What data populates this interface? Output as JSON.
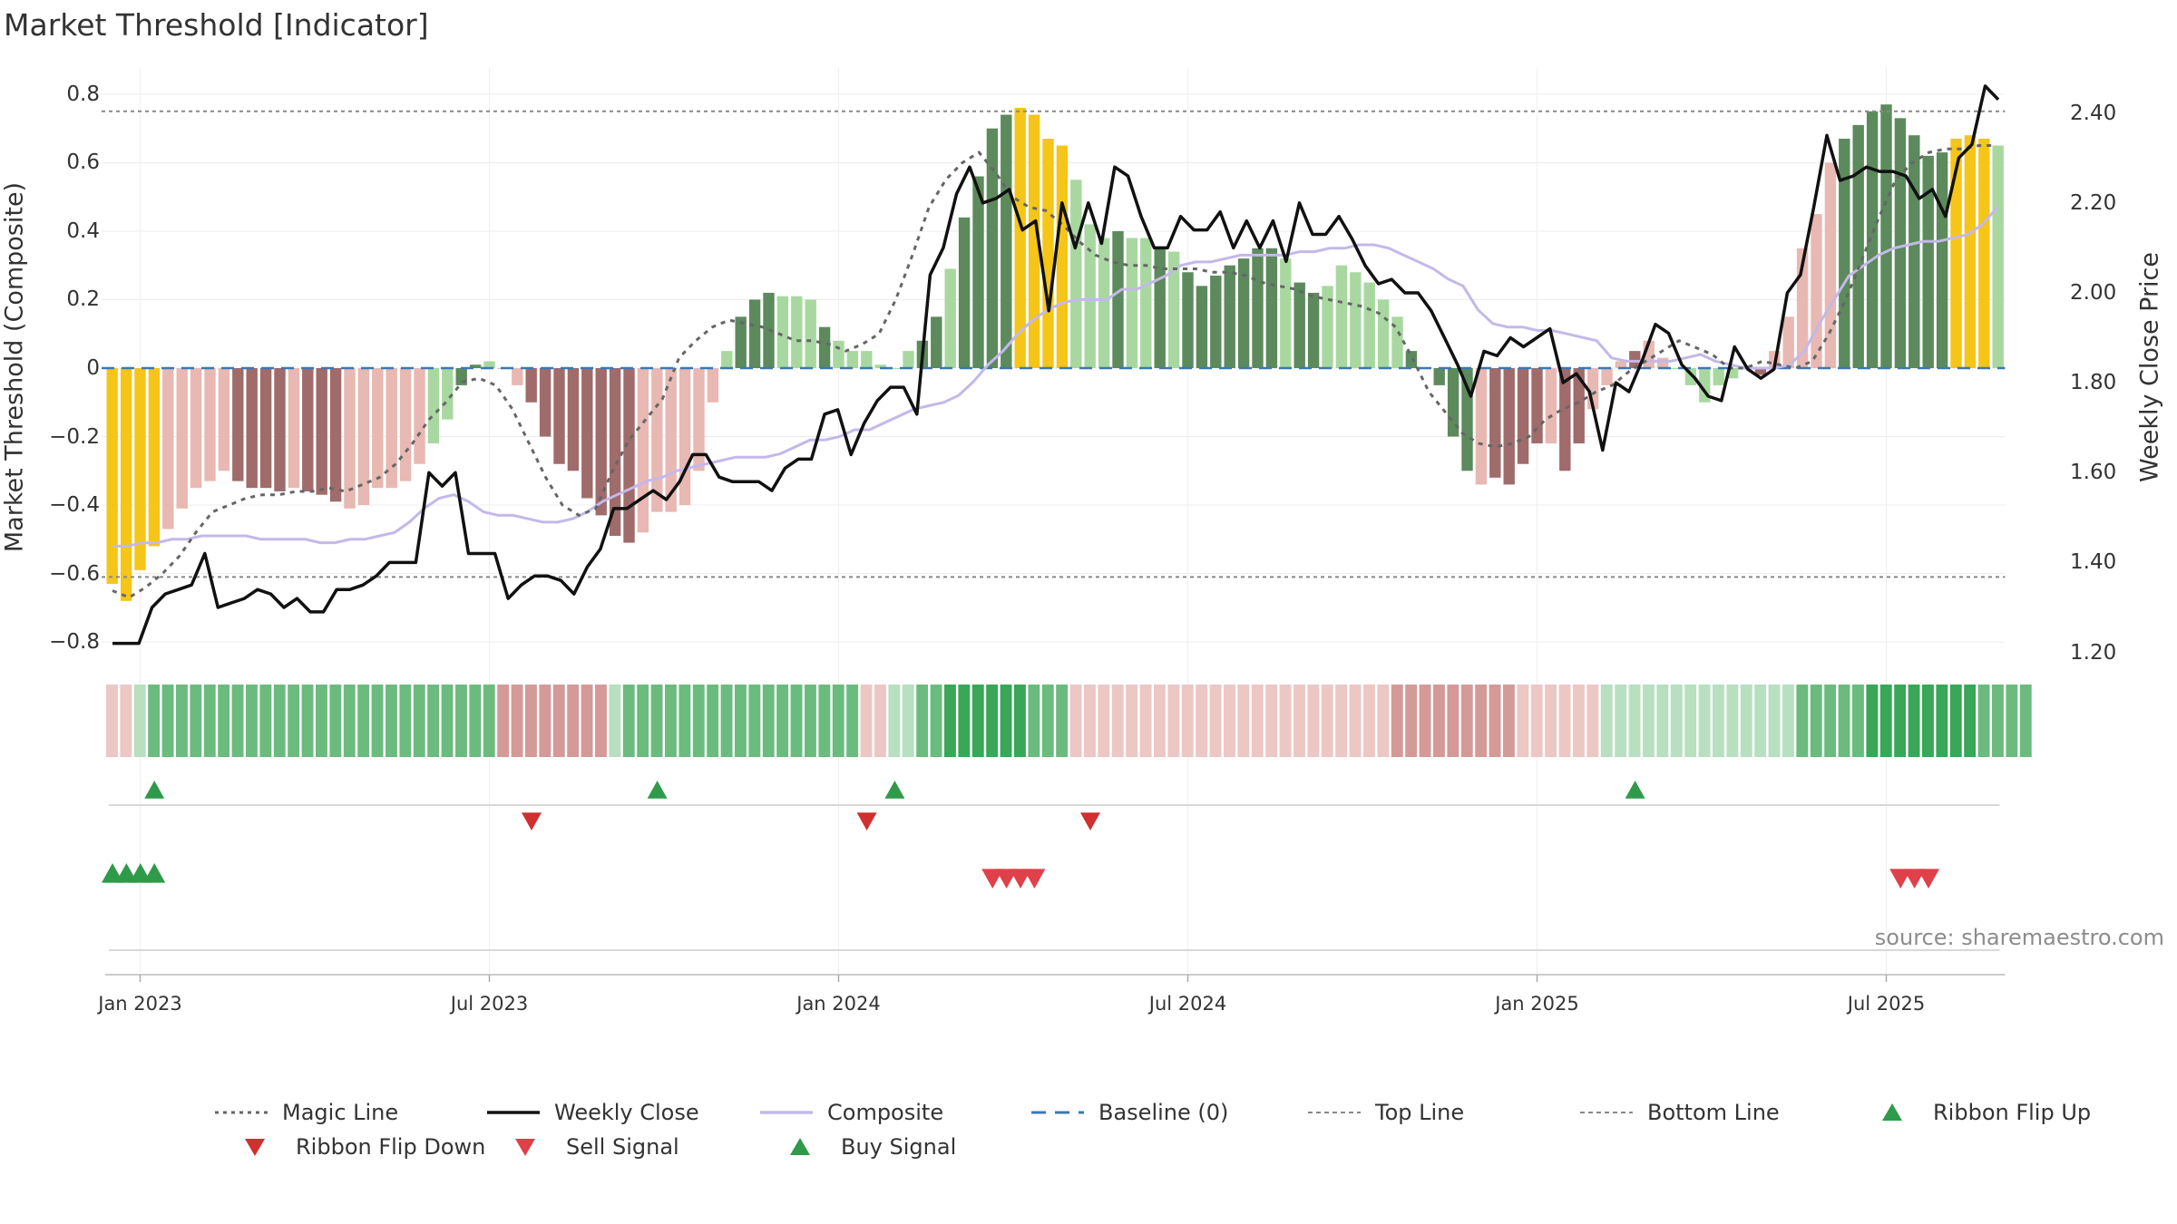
{
  "title": "Market Threshold [Indicator]",
  "source_note": "source: sharemaestro.com",
  "colors": {
    "yellow": "#f5c518",
    "dark_green": "#5c8a5c",
    "light_green": "#a8d8a0",
    "dark_red": "#a06b6b",
    "light_red": "#e8b8b2",
    "magic": "#666666",
    "close": "#111111",
    "composite": "#c4b8ea",
    "baseline": "#3a78b5",
    "threshold": "#888888",
    "buy": "#2e9a4a",
    "sell": "#e0404a",
    "flip_down": "#d03030"
  },
  "chart_data": {
    "type": "bar",
    "title": "Market Threshold [Indicator]",
    "ylabel": "Market Threshold (Composite)",
    "y2label": "Weekly Close Price",
    "ylim": [
      -0.85,
      0.85
    ],
    "y2lim": [
      1.185,
      2.48
    ],
    "yticks": [
      "0.8",
      "0.6",
      "0.4",
      "0.2",
      "0",
      "−0.2",
      "−0.4",
      "−0.6",
      "−0.8"
    ],
    "yticks_values": [
      0.8,
      0.6,
      0.4,
      0.2,
      0,
      -0.2,
      -0.4,
      -0.6,
      -0.8
    ],
    "y2ticks": [
      "2.40",
      "2.20",
      "2.00",
      "1.80",
      "1.60",
      "1.40",
      "1.20"
    ],
    "y2ticks_values": [
      2.4,
      2.2,
      2.0,
      1.8,
      1.6,
      1.4,
      1.2
    ],
    "xticks": [
      "Jan 2023",
      "Jul 2023",
      "Jan 2024",
      "Jul 2024",
      "Jan 2025",
      "Jul 2025"
    ],
    "xticks_week": [
      2.5,
      27.5,
      52.5,
      77.5,
      102.5,
      127.5
    ],
    "top_line": 0.75,
    "bottom_line": -0.61,
    "baseline": 0,
    "composite": [
      -0.63,
      -0.68,
      -0.59,
      -0.52,
      -0.47,
      -0.41,
      -0.35,
      -0.33,
      -0.3,
      -0.33,
      -0.35,
      -0.35,
      -0.36,
      -0.35,
      -0.36,
      -0.37,
      -0.39,
      -0.41,
      -0.4,
      -0.35,
      -0.35,
      -0.33,
      -0.28,
      -0.22,
      -0.15,
      -0.05,
      0.01,
      0.02,
      0.0,
      -0.05,
      -0.1,
      -0.2,
      -0.28,
      -0.3,
      -0.38,
      -0.43,
      -0.49,
      -0.51,
      -0.48,
      -0.42,
      -0.42,
      -0.4,
      -0.3,
      -0.1,
      0.05,
      0.15,
      0.2,
      0.22,
      0.21,
      0.21,
      0.2,
      0.12,
      0.08,
      0.05,
      0.05,
      0.01,
      0.0,
      0.05,
      0.08,
      0.15,
      0.29,
      0.44,
      0.56,
      0.7,
      0.74,
      0.76,
      0.74,
      0.67,
      0.65,
      0.55,
      0.42,
      0.38,
      0.4,
      0.38,
      0.38,
      0.35,
      0.34,
      0.28,
      0.24,
      0.27,
      0.3,
      0.32,
      0.35,
      0.35,
      0.32,
      0.25,
      0.22,
      0.24,
      0.3,
      0.28,
      0.25,
      0.2,
      0.15,
      0.05,
      0.0,
      -0.05,
      -0.2,
      -0.3,
      -0.34,
      -0.32,
      -0.34,
      -0.28,
      -0.22,
      -0.22,
      -0.3,
      -0.22,
      -0.12,
      -0.05,
      0.02,
      0.05,
      0.08,
      0.03,
      0.0,
      -0.05,
      -0.1,
      -0.05,
      -0.03,
      0.0,
      -0.02,
      0.05,
      0.15,
      0.35,
      0.45,
      0.6,
      0.67,
      0.71,
      0.75,
      0.77,
      0.73,
      0.68,
      0.62,
      0.63,
      0.67,
      0.68,
      0.67,
      0.65
    ],
    "bar_colors": [
      "Y",
      "Y",
      "Y",
      "Y",
      "LR",
      "LR",
      "LR",
      "LR",
      "LR",
      "DR",
      "DR",
      "DR",
      "DR",
      "LR",
      "DR",
      "DR",
      "DR",
      "LR",
      "LR",
      "LR",
      "LR",
      "LR",
      "LR",
      "LG",
      "LG",
      "DG",
      "DG",
      "LG",
      "LR",
      "LR",
      "DR",
      "DR",
      "DR",
      "DR",
      "DR",
      "DR",
      "DR",
      "DR",
      "LR",
      "LR",
      "LR",
      "LR",
      "LR",
      "LR",
      "LG",
      "DG",
      "DG",
      "DG",
      "LG",
      "LG",
      "LG",
      "DG",
      "LG",
      "LG",
      "LG",
      "LG",
      "LG",
      "LG",
      "DG",
      "DG",
      "LG",
      "DG",
      "DG",
      "DG",
      "DG",
      "Y",
      "Y",
      "Y",
      "Y",
      "LG",
      "LG",
      "LG",
      "DG",
      "LG",
      "LG",
      "DG",
      "LG",
      "DG",
      "DG",
      "DG",
      "DG",
      "DG",
      "DG",
      "DG",
      "LG",
      "DG",
      "DG",
      "LG",
      "LG",
      "LG",
      "LG",
      "LG",
      "LG",
      "DG",
      "LG",
      "DG",
      "DG",
      "DG",
      "LR",
      "DR",
      "DR",
      "DR",
      "DR",
      "LR",
      "DR",
      "DR",
      "LR",
      "LR",
      "LR",
      "DR",
      "LR",
      "LR",
      "LG",
      "LG",
      "LG",
      "LG",
      "LG",
      "DR",
      "DR",
      "LR",
      "LR",
      "LR",
      "LR",
      "LR",
      "DG",
      "DG",
      "DG",
      "DG",
      "DG",
      "DG",
      "DG",
      "DG",
      "Y",
      "Y",
      "Y",
      "LG",
      "LG",
      "LG",
      "DG",
      "DG",
      "DG",
      "LG"
    ],
    "magic_line": [
      -0.65,
      -0.67,
      -0.64,
      -0.6,
      -0.55,
      -0.48,
      -0.42,
      -0.4,
      -0.38,
      -0.37,
      -0.37,
      -0.36,
      -0.36,
      -0.35,
      -0.36,
      -0.34,
      -0.32,
      -0.28,
      -0.22,
      -0.15,
      -0.1,
      -0.04,
      -0.03,
      -0.05,
      -0.12,
      -0.22,
      -0.32,
      -0.4,
      -0.43,
      -0.41,
      -0.3,
      -0.21,
      -0.15,
      -0.09,
      0.03,
      0.08,
      0.12,
      0.14,
      0.13,
      0.12,
      0.1,
      0.08,
      0.08,
      0.07,
      0.05,
      0.07,
      0.1,
      0.2,
      0.33,
      0.47,
      0.55,
      0.6,
      0.63,
      0.57,
      0.5,
      0.47,
      0.46,
      0.42,
      0.37,
      0.33,
      0.31,
      0.3,
      0.3,
      0.29,
      0.29,
      0.29,
      0.28,
      0.28,
      0.27,
      0.25,
      0.24,
      0.23,
      0.21,
      0.2,
      0.19,
      0.18,
      0.16,
      0.12,
      0.03,
      -0.07,
      -0.13,
      -0.19,
      -0.22,
      -0.23,
      -0.22,
      -0.2,
      -0.15,
      -0.12,
      -0.1,
      -0.07,
      -0.05,
      -0.01,
      0.02,
      0.05,
      0.08,
      0.06,
      0.04,
      0.0,
      0.0,
      0.02,
      0.01,
      0.0,
      0.02,
      0.1,
      0.2,
      0.32,
      0.44,
      0.55,
      0.6,
      0.63,
      0.64,
      0.64,
      0.65,
      0.65
    ],
    "magic_line_start_week": 0,
    "composite_line": [
      -0.52,
      -0.52,
      -0.51,
      -0.51,
      -0.5,
      -0.5,
      -0.49,
      -0.49,
      -0.49,
      -0.49,
      -0.5,
      -0.5,
      -0.5,
      -0.5,
      -0.51,
      -0.51,
      -0.5,
      -0.5,
      -0.49,
      -0.48,
      -0.45,
      -0.41,
      -0.38,
      -0.37,
      -0.39,
      -0.42,
      -0.43,
      -0.43,
      -0.44,
      -0.45,
      -0.45,
      -0.44,
      -0.42,
      -0.39,
      -0.37,
      -0.35,
      -0.33,
      -0.32,
      -0.3,
      -0.29,
      -0.28,
      -0.27,
      -0.26,
      -0.26,
      -0.26,
      -0.25,
      -0.23,
      -0.21,
      -0.21,
      -0.2,
      -0.18,
      -0.18,
      -0.16,
      -0.14,
      -0.12,
      -0.11,
      -0.1,
      -0.08,
      -0.04,
      0.01,
      0.05,
      0.1,
      0.14,
      0.17,
      0.19,
      0.2,
      0.2,
      0.2,
      0.23,
      0.23,
      0.25,
      0.27,
      0.3,
      0.31,
      0.31,
      0.32,
      0.33,
      0.33,
      0.33,
      0.33,
      0.34,
      0.34,
      0.35,
      0.35,
      0.36,
      0.36,
      0.35,
      0.33,
      0.31,
      0.29,
      0.26,
      0.24,
      0.17,
      0.13,
      0.12,
      0.12,
      0.11,
      0.11,
      0.1,
      0.09,
      0.08,
      0.03,
      0.02,
      0.02,
      0.02,
      0.02,
      0.03,
      0.04,
      0.02,
      0.01,
      0.0,
      0.0,
      0.0,
      0.01,
      0.05,
      0.13,
      0.2,
      0.27,
      0.3,
      0.33,
      0.35,
      0.36,
      0.37,
      0.37,
      0.38,
      0.39,
      0.42,
      0.47
    ],
    "weekly_close": [
      1.22,
      1.22,
      1.22,
      1.3,
      1.33,
      1.34,
      1.35,
      1.42,
      1.3,
      1.31,
      1.32,
      1.34,
      1.33,
      1.3,
      1.32,
      1.29,
      1.29,
      1.34,
      1.34,
      1.35,
      1.37,
      1.4,
      1.4,
      1.4,
      1.6,
      1.57,
      1.6,
      1.42,
      1.42,
      1.42,
      1.32,
      1.35,
      1.37,
      1.37,
      1.36,
      1.33,
      1.39,
      1.43,
      1.52,
      1.52,
      1.54,
      1.56,
      1.54,
      1.58,
      1.64,
      1.64,
      1.59,
      1.58,
      1.58,
      1.58,
      1.56,
      1.61,
      1.63,
      1.63,
      1.73,
      1.74,
      1.64,
      1.71,
      1.76,
      1.79,
      1.79,
      1.73,
      2.04,
      2.1,
      2.22,
      2.28,
      2.2,
      2.21,
      2.23,
      2.14,
      2.16,
      1.96,
      2.2,
      2.1,
      2.2,
      2.11,
      2.28,
      2.26,
      2.17,
      2.1,
      2.1,
      2.17,
      2.14,
      2.14,
      2.18,
      2.1,
      2.16,
      2.1,
      2.16,
      2.07,
      2.2,
      2.13,
      2.13,
      2.17,
      2.12,
      2.06,
      2.02,
      2.03,
      2.0,
      2.0,
      1.96,
      1.9,
      1.84,
      1.77,
      1.87,
      1.86,
      1.9,
      1.88,
      1.9,
      1.92,
      1.8,
      1.82,
      1.78,
      1.65,
      1.8,
      1.78,
      1.85,
      1.93,
      1.91,
      1.84,
      1.81,
      1.77,
      1.76,
      1.88,
      1.83,
      1.81,
      1.83,
      2.0,
      2.04,
      2.19,
      2.35,
      2.25,
      2.26,
      2.28,
      2.27,
      2.27,
      2.26,
      2.21,
      2.23,
      2.17,
      2.3,
      2.33,
      2.46,
      2.43
    ],
    "close_x_step": 0.75,
    "ribbon_levels": [
      -1,
      -1,
      1,
      2,
      2,
      2,
      2,
      2,
      2,
      2,
      2,
      2,
      2,
      2,
      2,
      2,
      2,
      2,
      2,
      2,
      2,
      2,
      2,
      2,
      2,
      2,
      2,
      2,
      -2,
      -2,
      -2,
      -2,
      -2,
      -2,
      -2,
      -2,
      1,
      2,
      2,
      2,
      2,
      2,
      2,
      2,
      2,
      2,
      2,
      2,
      2,
      2,
      2,
      2,
      2,
      2,
      -1,
      -1,
      1,
      1,
      2,
      2,
      3,
      3,
      3,
      3,
      3,
      3,
      2,
      2,
      2,
      -1,
      -1,
      -1,
      -1,
      -1,
      -1,
      -1,
      -1,
      -1,
      -1,
      -1,
      -1,
      -1,
      -1,
      -1,
      -1,
      -1,
      -1,
      -1,
      -1,
      -1,
      -1,
      -1,
      -2,
      -2,
      -2,
      -2,
      -2,
      -2,
      -2,
      -2,
      -2,
      -1,
      -1,
      -1,
      -1,
      -1,
      -1,
      1,
      1,
      1,
      1,
      1,
      1,
      1,
      1,
      1,
      1,
      1,
      1,
      1,
      1,
      2,
      2,
      2,
      2,
      2,
      3,
      3,
      3,
      3,
      3,
      3,
      3,
      3,
      2,
      2,
      2,
      2
    ],
    "buy_flip_up_weeks": [
      3,
      39,
      56,
      109
    ],
    "flip_down_weeks": [
      30,
      54,
      70
    ],
    "buy_signal_weeks": [
      0,
      1,
      2,
      3
    ],
    "sell_signal_weeks": [
      63,
      64,
      65,
      66,
      128,
      129,
      130
    ],
    "legend": [
      {
        "label": "Magic Line",
        "type": "dotted",
        "color": "#666666"
      },
      {
        "label": "Weekly Close",
        "type": "solid",
        "color": "#111111"
      },
      {
        "label": "Composite",
        "type": "solid",
        "color": "#c4b8ea"
      },
      {
        "label": "Baseline (0)",
        "type": "dashed",
        "color": "#3a78b5"
      },
      {
        "label": "Top Line",
        "type": "dashed",
        "color": "#888888"
      },
      {
        "label": "Bottom Line",
        "type": "dashed",
        "color": "#888888"
      },
      {
        "label": "Ribbon Flip Up",
        "type": "triangle-up",
        "color": "#2e9a4a"
      },
      {
        "label": "Ribbon Flip Down",
        "type": "triangle-down",
        "color": "#d03030"
      },
      {
        "label": "Sell Signal",
        "type": "triangle-down",
        "color": "#e0404a"
      },
      {
        "label": "Buy Signal",
        "type": "triangle-up",
        "color": "#2e9a4a"
      }
    ],
    "grid": true,
    "legend_position": "bottom"
  }
}
